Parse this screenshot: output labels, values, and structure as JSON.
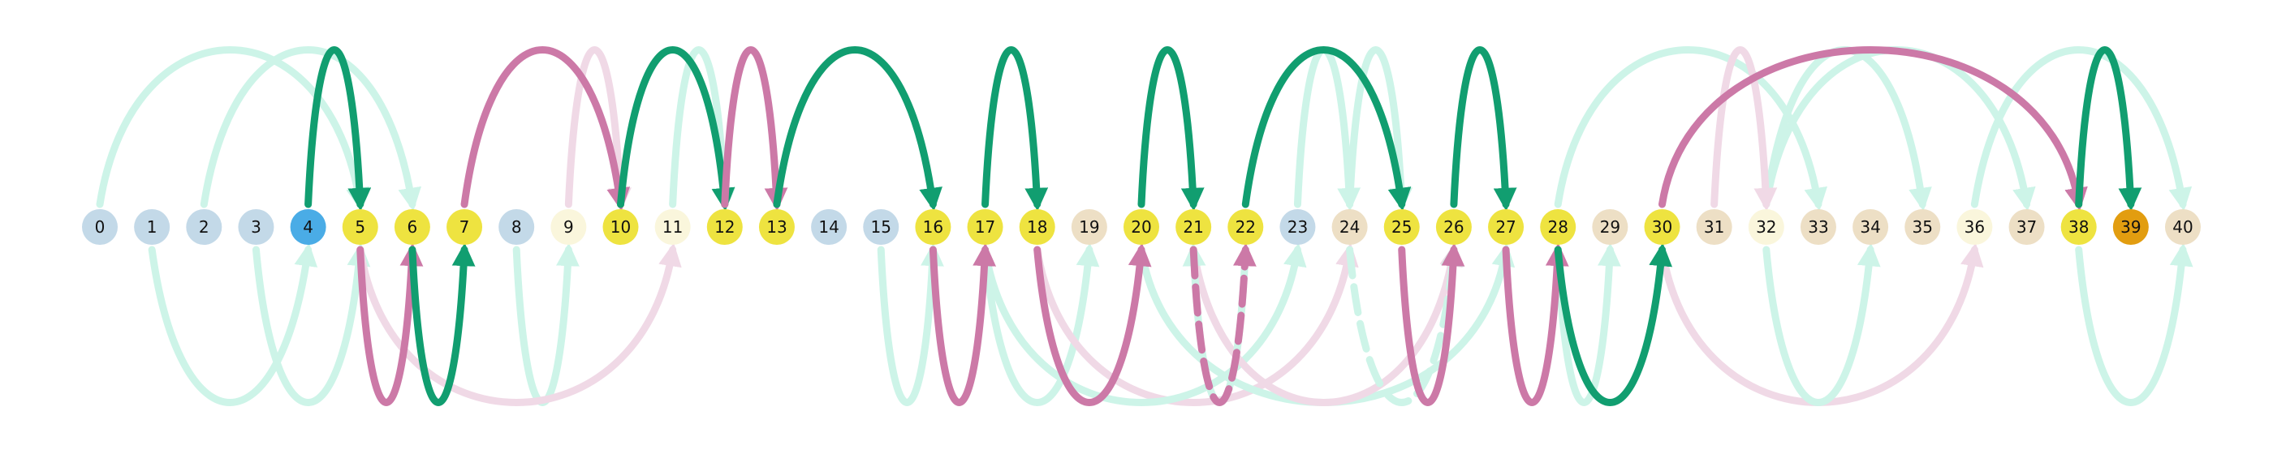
{
  "colors": {
    "node_blue_light": "#c3d9e8",
    "node_blue": "#4aace6",
    "node_yellow": "#eee340",
    "node_cream": "#faf6dc",
    "node_tan": "#eddfc5",
    "node_orange": "#e29d10",
    "arc_green": "#119e70",
    "arc_pink": "#cc79a7",
    "arc_green_faint": "#cdf4e8",
    "arc_pink_faint": "#f0d9e6"
  },
  "nodes": [
    {
      "label": "0",
      "color": "node_blue_light"
    },
    {
      "label": "1",
      "color": "node_blue_light"
    },
    {
      "label": "2",
      "color": "node_blue_light"
    },
    {
      "label": "3",
      "color": "node_blue_light"
    },
    {
      "label": "4",
      "color": "node_blue"
    },
    {
      "label": "5",
      "color": "node_yellow"
    },
    {
      "label": "6",
      "color": "node_yellow"
    },
    {
      "label": "7",
      "color": "node_yellow"
    },
    {
      "label": "8",
      "color": "node_blue_light"
    },
    {
      "label": "9",
      "color": "node_cream"
    },
    {
      "label": "10",
      "color": "node_yellow"
    },
    {
      "label": "11",
      "color": "node_cream"
    },
    {
      "label": "12",
      "color": "node_yellow"
    },
    {
      "label": "13",
      "color": "node_yellow"
    },
    {
      "label": "14",
      "color": "node_blue_light"
    },
    {
      "label": "15",
      "color": "node_blue_light"
    },
    {
      "label": "16",
      "color": "node_yellow"
    },
    {
      "label": "17",
      "color": "node_yellow"
    },
    {
      "label": "18",
      "color": "node_yellow"
    },
    {
      "label": "19",
      "color": "node_tan"
    },
    {
      "label": "20",
      "color": "node_yellow"
    },
    {
      "label": "21",
      "color": "node_yellow"
    },
    {
      "label": "22",
      "color": "node_yellow"
    },
    {
      "label": "23",
      "color": "node_blue_light"
    },
    {
      "label": "24",
      "color": "node_tan"
    },
    {
      "label": "25",
      "color": "node_yellow"
    },
    {
      "label": "26",
      "color": "node_yellow"
    },
    {
      "label": "27",
      "color": "node_yellow"
    },
    {
      "label": "28",
      "color": "node_yellow"
    },
    {
      "label": "29",
      "color": "node_tan"
    },
    {
      "label": "30",
      "color": "node_yellow"
    },
    {
      "label": "31",
      "color": "node_tan"
    },
    {
      "label": "32",
      "color": "node_cream"
    },
    {
      "label": "33",
      "color": "node_tan"
    },
    {
      "label": "34",
      "color": "node_tan"
    },
    {
      "label": "35",
      "color": "node_tan"
    },
    {
      "label": "36",
      "color": "node_cream"
    },
    {
      "label": "37",
      "color": "node_tan"
    },
    {
      "label": "38",
      "color": "node_yellow"
    },
    {
      "label": "39",
      "color": "node_orange"
    },
    {
      "label": "40",
      "color": "node_tan"
    }
  ],
  "arcs": [
    {
      "from": 0,
      "to": 5,
      "side": "above",
      "style": "faint_green"
    },
    {
      "from": 2,
      "to": 6,
      "side": "above",
      "style": "faint_green"
    },
    {
      "from": 1,
      "to": 4,
      "side": "below",
      "style": "faint_green"
    },
    {
      "from": 3,
      "to": 5,
      "side": "below",
      "style": "faint_green"
    },
    {
      "from": 8,
      "to": 9,
      "side": "below",
      "style": "faint_green"
    },
    {
      "from": 5,
      "to": 11,
      "side": "below",
      "style": "faint_pink"
    },
    {
      "from": 9,
      "to": 10,
      "side": "above",
      "style": "faint_pink"
    },
    {
      "from": 11,
      "to": 12,
      "side": "above",
      "style": "faint_green"
    },
    {
      "from": 15,
      "to": 16,
      "side": "below",
      "style": "faint_green"
    },
    {
      "from": 17,
      "to": 19,
      "side": "below",
      "style": "faint_green"
    },
    {
      "from": 18,
      "to": 24,
      "side": "below",
      "style": "faint_pink"
    },
    {
      "from": 17,
      "to": 23,
      "side": "below",
      "style": "faint_green"
    },
    {
      "from": 20,
      "to": 27,
      "side": "below",
      "style": "faint_green"
    },
    {
      "from": 21,
      "to": 26,
      "side": "below",
      "style": "faint_pink"
    },
    {
      "from": 23,
      "to": 24,
      "side": "above",
      "style": "faint_green"
    },
    {
      "from": 24,
      "to": 25,
      "side": "above",
      "style": "faint_green"
    },
    {
      "from": 28,
      "to": 29,
      "side": "below",
      "style": "faint_green"
    },
    {
      "from": 28,
      "to": 33,
      "side": "above",
      "style": "faint_green"
    },
    {
      "from": 32,
      "to": 35,
      "side": "above",
      "style": "faint_green"
    },
    {
      "from": 32,
      "to": 37,
      "side": "above",
      "style": "faint_green"
    },
    {
      "from": 31,
      "to": 32,
      "side": "above",
      "style": "faint_pink"
    },
    {
      "from": 30,
      "to": 36,
      "side": "below",
      "style": "faint_pink"
    },
    {
      "from": 32,
      "to": 34,
      "side": "below",
      "style": "faint_green"
    },
    {
      "from": 36,
      "to": 40,
      "side": "above",
      "style": "faint_green"
    },
    {
      "from": 38,
      "to": 40,
      "side": "below",
      "style": "faint_green"
    },
    {
      "from": 22,
      "to": 21,
      "side": "below",
      "style": "dashed_faint_green"
    },
    {
      "from": 24,
      "to": 26,
      "side": "below",
      "style": "dashed_faint_green"
    },
    {
      "from": 4,
      "to": 5,
      "side": "above",
      "style": "green"
    },
    {
      "from": 5,
      "to": 6,
      "side": "below",
      "style": "pink"
    },
    {
      "from": 6,
      "to": 7,
      "side": "below",
      "style": "green"
    },
    {
      "from": 7,
      "to": 10,
      "side": "above",
      "style": "pink"
    },
    {
      "from": 10,
      "to": 12,
      "side": "above",
      "style": "green"
    },
    {
      "from": 12,
      "to": 13,
      "side": "above",
      "style": "pink"
    },
    {
      "from": 13,
      "to": 16,
      "side": "above",
      "style": "green"
    },
    {
      "from": 16,
      "to": 17,
      "side": "below",
      "style": "pink"
    },
    {
      "from": 17,
      "to": 18,
      "side": "above",
      "style": "green"
    },
    {
      "from": 18,
      "to": 20,
      "side": "below",
      "style": "pink"
    },
    {
      "from": 20,
      "to": 21,
      "side": "above",
      "style": "green"
    },
    {
      "from": 21,
      "to": 22,
      "side": "below",
      "style": "dashed_pink"
    },
    {
      "from": 22,
      "to": 25,
      "side": "above",
      "style": "green"
    },
    {
      "from": 25,
      "to": 26,
      "side": "below",
      "style": "pink"
    },
    {
      "from": 26,
      "to": 27,
      "side": "above",
      "style": "green"
    },
    {
      "from": 27,
      "to": 28,
      "side": "below",
      "style": "pink"
    },
    {
      "from": 28,
      "to": 30,
      "side": "below",
      "style": "green"
    },
    {
      "from": 30,
      "to": 38,
      "side": "above",
      "style": "pink"
    },
    {
      "from": 38,
      "to": 39,
      "side": "above",
      "style": "green"
    }
  ]
}
